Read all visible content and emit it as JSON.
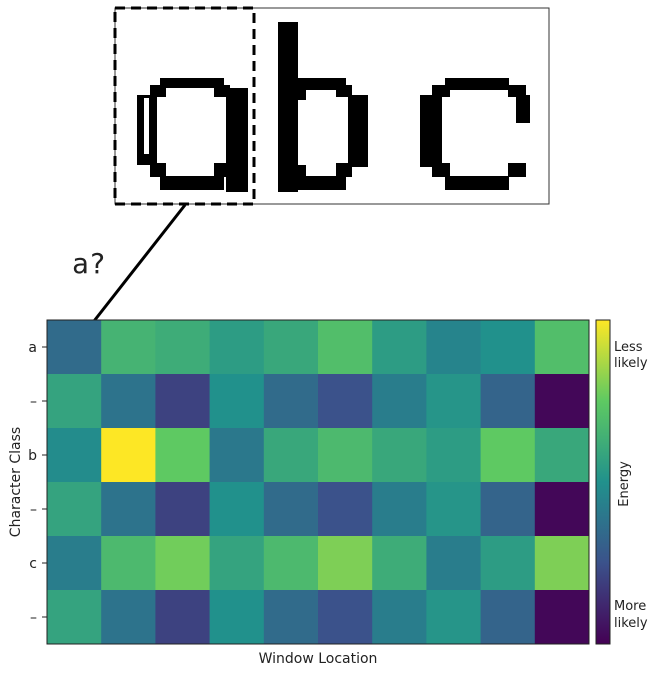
{
  "glyph_strip": {
    "letters": [
      "a",
      "b",
      "c"
    ],
    "selected_letter_index": 0
  },
  "query_label": "a?",
  "colorbar": {
    "top_label_line1": "Less",
    "top_label_line2": "likely",
    "middle_label": "Energy",
    "bottom_label_line1": "More",
    "bottom_label_line2": "likely",
    "colormap": "viridis",
    "stops": [
      "#440154",
      "#3b528b",
      "#21918c",
      "#5ec962",
      "#fde725"
    ]
  },
  "chart_data": {
    "type": "heatmap",
    "xlabel": "Window Location",
    "ylabel": "Character Class",
    "y_categories": [
      "a",
      "–",
      "b",
      "–",
      "c",
      "–"
    ],
    "x_count": 10,
    "value_scale": "0 = more likely (low energy), 1 = less likely (high energy)",
    "values": [
      [
        0.35,
        0.65,
        0.62,
        0.55,
        0.6,
        0.7,
        0.55,
        0.45,
        0.5,
        0.7
      ],
      [
        0.58,
        0.38,
        0.2,
        0.5,
        0.35,
        0.25,
        0.42,
        0.52,
        0.32,
        0.02
      ],
      [
        0.48,
        1.0,
        0.75,
        0.4,
        0.6,
        0.68,
        0.6,
        0.55,
        0.75,
        0.6
      ],
      [
        0.58,
        0.38,
        0.2,
        0.5,
        0.35,
        0.25,
        0.42,
        0.52,
        0.32,
        0.02
      ],
      [
        0.42,
        0.68,
        0.78,
        0.58,
        0.68,
        0.8,
        0.62,
        0.42,
        0.55,
        0.8
      ],
      [
        0.58,
        0.38,
        0.2,
        0.5,
        0.35,
        0.25,
        0.42,
        0.52,
        0.32,
        0.02
      ]
    ]
  }
}
